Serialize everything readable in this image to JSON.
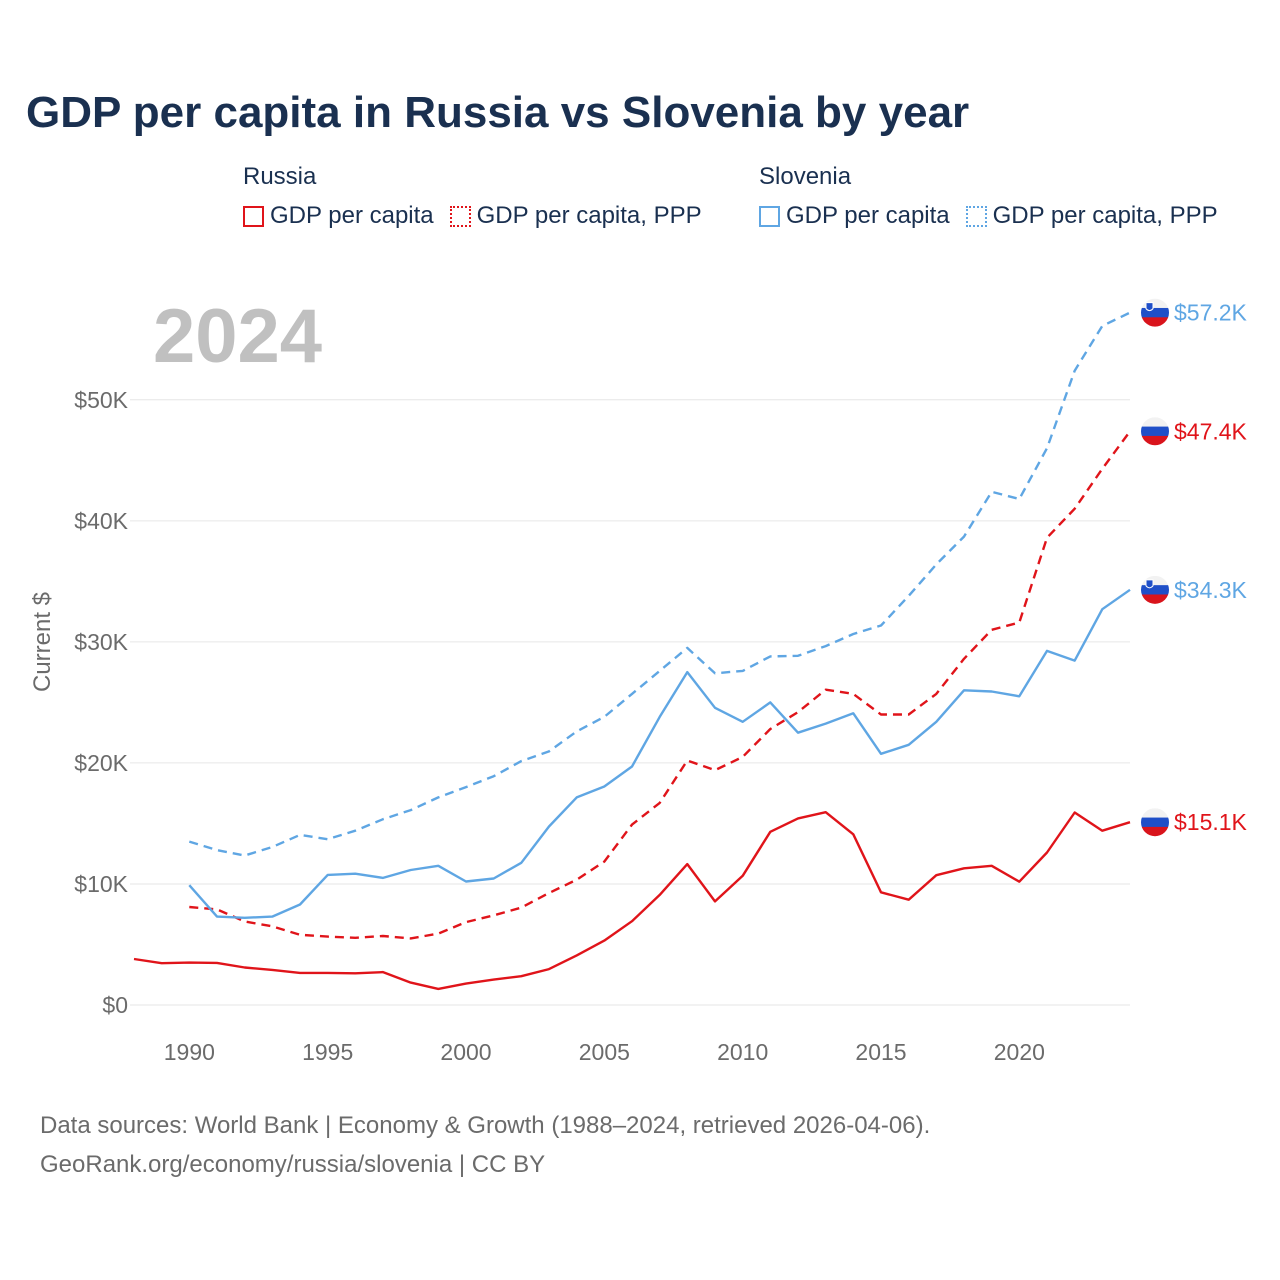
{
  "title": "GDP per capita in Russia vs Slovenia by year",
  "legend": {
    "groups": [
      {
        "title": "Russia",
        "items": [
          "GDP per capita",
          "GDP per capita, PPP"
        ]
      },
      {
        "title": "Slovenia",
        "items": [
          "GDP per capita",
          "GDP per capita, PPP"
        ]
      }
    ]
  },
  "footer": {
    "line1": "Data sources: World Bank | Economy & Growth (1988–2024, retrieved 2026-04-06).",
    "line2": "GeoRank.org/economy/russia/slovenia | CC BY"
  },
  "colors": {
    "russia": "#e0141a",
    "slovenia": "#5fa6e3",
    "title": "#1a3050",
    "axis_text": "#6b6b6b",
    "year_watermark": "#c0c0c0",
    "grid": "#e6e6e6"
  },
  "chart_data": {
    "type": "line",
    "title": "GDP per capita in Russia vs Slovenia by year",
    "ylabel": "Current $",
    "xlabel": "",
    "year_label": "2024",
    "xlim": [
      1988,
      2024
    ],
    "ylim": [
      0,
      57500
    ],
    "yticks": [
      0,
      10000,
      20000,
      30000,
      40000,
      50000
    ],
    "ytick_labels": [
      "$0",
      "$10K",
      "$20K",
      "$30K",
      "$40K",
      "$50K"
    ],
    "xticks": [
      1990,
      1995,
      2000,
      2005,
      2010,
      2015,
      2020
    ],
    "xtick_labels": [
      "1990",
      "1995",
      "2000",
      "2005",
      "2010",
      "2015",
      "2020"
    ],
    "series": [
      {
        "name": "Russia GDP per capita",
        "country": "russia",
        "style": "solid",
        "end_label": "$15.1K",
        "x": [
          1988,
          1989,
          1990,
          1991,
          1992,
          1993,
          1994,
          1995,
          1996,
          1997,
          1998,
          1999,
          2000,
          2001,
          2002,
          2003,
          2004,
          2005,
          2006,
          2007,
          2008,
          2009,
          2010,
          2011,
          2012,
          2013,
          2014,
          2015,
          2016,
          2017,
          2018,
          2019,
          2020,
          2021,
          2022,
          2023,
          2024
        ],
        "values": [
          3800,
          3450,
          3500,
          3480,
          3100,
          2900,
          2650,
          2650,
          2620,
          2720,
          1850,
          1330,
          1770,
          2100,
          2380,
          2970,
          4100,
          5320,
          6920,
          9100,
          11640,
          8560,
          10670,
          14310,
          15420,
          15930,
          14100,
          9310,
          8700,
          10720,
          11290,
          11500,
          10190,
          12600,
          15900,
          14400,
          15100
        ]
      },
      {
        "name": "Russia GDP per capita, PPP",
        "country": "russia",
        "style": "dashed",
        "end_label": "$47.4K",
        "x": [
          1990,
          1991,
          1992,
          1993,
          1994,
          1995,
          1996,
          1997,
          1998,
          1999,
          2000,
          2001,
          2002,
          2003,
          2004,
          2005,
          2006,
          2007,
          2008,
          2009,
          2010,
          2011,
          2012,
          2013,
          2014,
          2015,
          2016,
          2017,
          2018,
          2019,
          2020,
          2021,
          2022,
          2023,
          2024
        ],
        "values": [
          8100,
          7900,
          6900,
          6500,
          5800,
          5650,
          5550,
          5700,
          5500,
          5900,
          6850,
          7400,
          8050,
          9250,
          10350,
          11850,
          14900,
          16700,
          20200,
          19400,
          20500,
          22800,
          24200,
          26050,
          25700,
          24000,
          24000,
          25700,
          28600,
          31000,
          31600,
          38600,
          41000,
          44300,
          47400
        ]
      },
      {
        "name": "Slovenia GDP per capita",
        "country": "slovenia",
        "style": "solid",
        "end_label": "$34.3K",
        "x": [
          1990,
          1991,
          1992,
          1993,
          1994,
          1995,
          1996,
          1997,
          1998,
          1999,
          2000,
          2001,
          2002,
          2003,
          2004,
          2005,
          2006,
          2007,
          2008,
          2009,
          2010,
          2011,
          2012,
          2013,
          2014,
          2015,
          2016,
          2017,
          2018,
          2019,
          2020,
          2021,
          2022,
          2023,
          2024
        ],
        "values": [
          9900,
          7300,
          7200,
          7300,
          8300,
          10750,
          10850,
          10500,
          11150,
          11500,
          10200,
          10450,
          11750,
          14750,
          17150,
          18050,
          19700,
          23800,
          27500,
          24550,
          23400,
          25000,
          22500,
          23250,
          24100,
          20750,
          21500,
          23400,
          26000,
          25900,
          25500,
          29250,
          28450,
          32700,
          34300
        ]
      },
      {
        "name": "Slovenia GDP per capita, PPP",
        "country": "slovenia",
        "style": "dashed",
        "end_label": "$57.2K",
        "x": [
          1990,
          1991,
          1992,
          1993,
          1994,
          1995,
          1996,
          1997,
          1998,
          1999,
          2000,
          2001,
          2002,
          2003,
          2004,
          2005,
          2006,
          2007,
          2008,
          2009,
          2010,
          2011,
          2012,
          2013,
          2014,
          2015,
          2016,
          2017,
          2018,
          2019,
          2020,
          2021,
          2022,
          2023,
          2024
        ],
        "values": [
          13500,
          12800,
          12350,
          13050,
          14050,
          13700,
          14400,
          15350,
          16100,
          17150,
          18000,
          18900,
          20150,
          20950,
          22600,
          23800,
          25700,
          27600,
          29500,
          27400,
          27600,
          28800,
          28850,
          29650,
          30650,
          31350,
          33800,
          36400,
          38700,
          42400,
          41800,
          46000,
          52400,
          56100,
          57200
        ]
      }
    ]
  }
}
